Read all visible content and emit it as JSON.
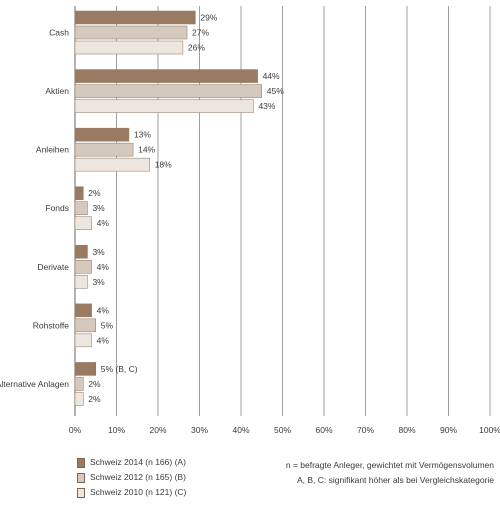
{
  "chart_data": {
    "type": "bar",
    "orientation": "horizontal",
    "categories": [
      "Cash",
      "Aktien",
      "Anleihen",
      "Fonds",
      "Derivate",
      "Rohstoffe",
      "Alternative Anlagen"
    ],
    "series": [
      {
        "name": "Schweiz 2014 (n 166) (A)",
        "color": "#9a7b62",
        "values": [
          29,
          44,
          13,
          2,
          3,
          4,
          5
        ]
      },
      {
        "name": "Schweiz 2012 (n 165) (B)",
        "color": "#d5c9bd",
        "values": [
          27,
          45,
          14,
          3,
          4,
          5,
          2
        ]
      },
      {
        "name": "Schweiz 2010 (n 121) (C)",
        "color": "#ede6df",
        "values": [
          26,
          43,
          18,
          4,
          3,
          4,
          2
        ]
      }
    ],
    "value_labels": [
      [
        "29%",
        "44%",
        "13%",
        "2%",
        "3%",
        "4%",
        "5% (B, C)"
      ],
      [
        "27%",
        "45%",
        "14%",
        "3%",
        "4%",
        "5%",
        "2%"
      ],
      [
        "26%",
        "43%",
        "18%",
        "4%",
        "3%",
        "4%",
        "2%"
      ]
    ],
    "x_ticks": [
      "0%",
      "10%",
      "20%",
      "30%",
      "40%",
      "50%",
      "60%",
      "70%",
      "80%",
      "90%",
      "100%"
    ],
    "xlim": [
      0,
      100
    ],
    "grid": true,
    "title": "",
    "xlabel": "",
    "ylabel": "",
    "legend_position": "bottom-left"
  },
  "notes": {
    "line1": "n = befragte Anleger, gewichtet mit Vermögensvolumen",
    "line2": "A, B, C: signifikant höher als bei Vergleichskategorie"
  }
}
